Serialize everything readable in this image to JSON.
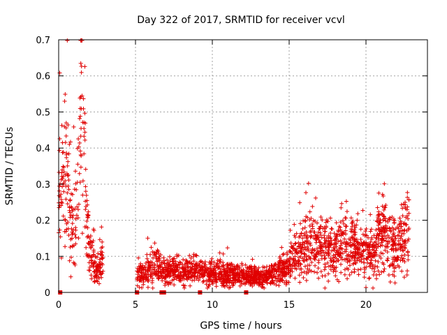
{
  "chart_data": {
    "type": "scatter",
    "title": "Day 322 of 2017, SRMTID for receiver vcvl",
    "xlabel": "GPS time / hours",
    "ylabel": "SRMTID / TECUs",
    "xlim": [
      0,
      24
    ],
    "ylim": [
      0,
      0.7
    ],
    "grid": true,
    "x_ticks": [
      0,
      5,
      10,
      15,
      20
    ],
    "x_tick_labels": [
      "0",
      "5",
      "10",
      "15",
      "20"
    ],
    "y_ticks": [
      0,
      0.1,
      0.2,
      0.3,
      0.4,
      0.5,
      0.6,
      0.7
    ],
    "y_tick_labels": [
      "0",
      "0.1",
      "0.2",
      "0.3",
      "0.4",
      "0.5",
      "0.6",
      "0.7"
    ],
    "marker": "+",
    "marker_color": "#e00000",
    "zero_value_markers": [
      0.1,
      5.1,
      6.7,
      6.85,
      9.2,
      12.2
    ],
    "series": [
      {
        "name": "vcvl",
        "trend_x": [
          0.0,
          0.2,
          0.4,
          0.6,
          0.8,
          1.0,
          1.2,
          1.4,
          1.5,
          1.6,
          1.7,
          1.8,
          2.0,
          2.2,
          2.4,
          2.6,
          2.8,
          5.2,
          5.6,
          6.0,
          6.3,
          6.6,
          7.0,
          8.0,
          9.0,
          10.0,
          11.0,
          12.0,
          13.0,
          14.0,
          14.5,
          15.0,
          15.5,
          16.0,
          16.5,
          17.0,
          17.5,
          18.0,
          18.5,
          19.0,
          19.5,
          20.0,
          20.5,
          20.8,
          21.0,
          21.5,
          22.0,
          22.5,
          22.8
        ],
        "trend_y": [
          0.27,
          0.29,
          0.33,
          0.3,
          0.2,
          0.18,
          0.25,
          0.4,
          0.55,
          0.5,
          0.4,
          0.22,
          0.12,
          0.09,
          0.07,
          0.06,
          0.08,
          0.05,
          0.05,
          0.06,
          0.08,
          0.06,
          0.06,
          0.06,
          0.06,
          0.05,
          0.05,
          0.05,
          0.04,
          0.05,
          0.06,
          0.07,
          0.1,
          0.13,
          0.14,
          0.13,
          0.12,
          0.12,
          0.14,
          0.13,
          0.12,
          0.11,
          0.1,
          0.15,
          0.18,
          0.13,
          0.12,
          0.15,
          0.18
        ],
        "gaps": [
          [
            2.9,
            5.1
          ]
        ],
        "point_count": 2600
      }
    ]
  }
}
